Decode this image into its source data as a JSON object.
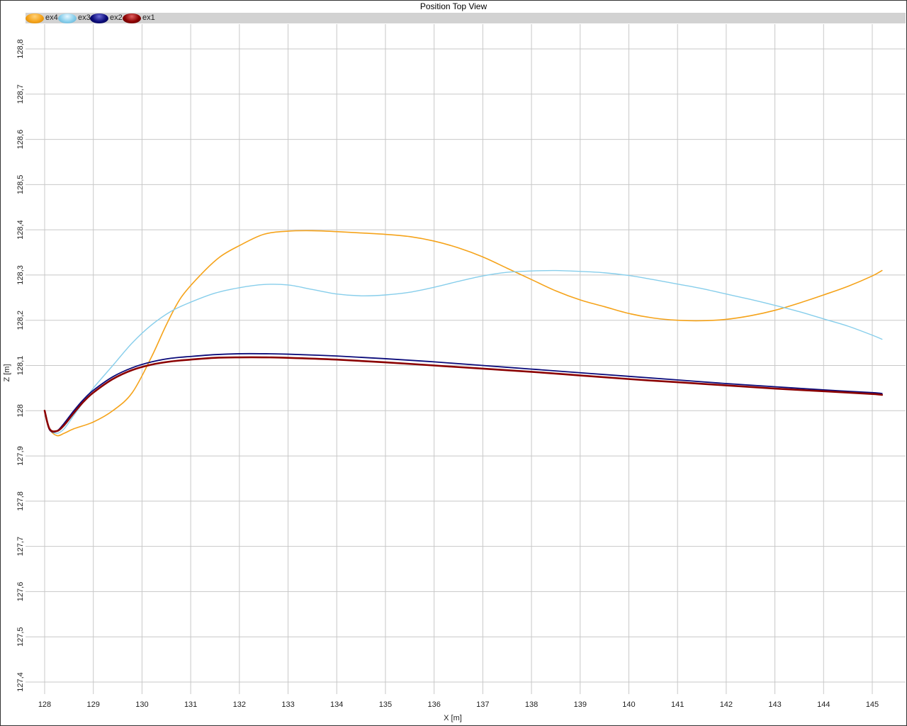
{
  "window": {
    "title": "Position Top View"
  },
  "chart_data": {
    "type": "line",
    "title": "Position Top View",
    "xlabel": "X [m]",
    "ylabel": "Z [m]",
    "xlim": [
      127.85,
      145.35
    ],
    "ylim": [
      127.38,
      128.85
    ],
    "grid": true,
    "legend_position": "top-left",
    "x_ticks": [
      128,
      129,
      130,
      131,
      132,
      133,
      134,
      135,
      136,
      137,
      138,
      139,
      140,
      141,
      142,
      143,
      144,
      145
    ],
    "x_tick_labels": [
      "128",
      "129",
      "130",
      "131",
      "132",
      "133",
      "134",
      "135",
      "136",
      "137",
      "138",
      "139",
      "140",
      "141",
      "142",
      "143",
      "144",
      "145"
    ],
    "y_ticks": [
      127.4,
      127.5,
      127.6,
      127.7,
      127.8,
      127.9,
      128.0,
      128.1,
      128.2,
      128.3,
      128.4,
      128.5,
      128.6,
      128.7,
      128.8
    ],
    "y_tick_labels": [
      "127,4",
      "127,5",
      "127,6",
      "127,7",
      "127,8",
      "127,9",
      "128",
      "128,1",
      "128,2",
      "128,3",
      "128,4",
      "128,5",
      "128,6",
      "128,7",
      "128,8"
    ],
    "series": [
      {
        "name": "ex4",
        "color": "#f5a31a",
        "width": 1.6,
        "x": [
          128.0,
          128.1,
          128.25,
          128.4,
          128.6,
          129.0,
          129.4,
          129.8,
          130.2,
          130.5,
          130.8,
          131.2,
          131.6,
          132.0,
          132.5,
          133.0,
          133.5,
          134.0,
          134.5,
          135.0,
          135.5,
          136.0,
          136.5,
          137.0,
          137.5,
          138.0,
          138.5,
          139.0,
          139.5,
          140.0,
          140.5,
          141.0,
          141.5,
          142.0,
          142.5,
          143.0,
          143.5,
          144.0,
          144.5,
          145.0,
          145.2
        ],
        "y": [
          128.0,
          127.96,
          127.945,
          127.95,
          127.96,
          127.975,
          128.0,
          128.04,
          128.12,
          128.19,
          128.25,
          128.3,
          128.34,
          128.365,
          128.39,
          128.397,
          128.398,
          128.396,
          128.393,
          128.39,
          128.385,
          128.375,
          128.36,
          128.34,
          128.315,
          128.29,
          128.265,
          128.245,
          128.23,
          128.215,
          128.205,
          128.2,
          128.199,
          128.202,
          128.21,
          128.222,
          128.238,
          128.256,
          128.275,
          128.298,
          128.31
        ]
      },
      {
        "name": "ex3",
        "color": "#87ceeb",
        "width": 1.4,
        "x": [
          128.0,
          128.1,
          128.25,
          128.4,
          128.6,
          128.8,
          129.0,
          129.4,
          129.8,
          130.2,
          130.6,
          131.0,
          131.5,
          132.0,
          132.5,
          133.0,
          133.5,
          134.0,
          134.5,
          135.0,
          135.5,
          136.0,
          136.5,
          137.0,
          137.5,
          138.0,
          138.5,
          139.0,
          139.5,
          140.0,
          140.5,
          141.0,
          141.5,
          142.0,
          142.5,
          143.0,
          143.5,
          144.0,
          144.5,
          145.0,
          145.2
        ],
        "y": [
          128.0,
          127.96,
          127.95,
          127.96,
          127.99,
          128.02,
          128.05,
          128.1,
          128.15,
          128.19,
          128.22,
          128.24,
          128.26,
          128.272,
          128.279,
          128.278,
          128.268,
          128.258,
          128.254,
          128.256,
          128.262,
          128.273,
          128.286,
          128.298,
          128.306,
          128.309,
          128.31,
          128.308,
          128.305,
          128.299,
          128.29,
          128.28,
          128.27,
          128.258,
          128.246,
          128.233,
          128.219,
          128.203,
          128.187,
          128.167,
          128.158
        ]
      },
      {
        "name": "ex2",
        "color": "#0b0b7a",
        "width": 1.8,
        "x": [
          128.0,
          128.1,
          128.25,
          128.4,
          128.6,
          128.8,
          129.0,
          129.4,
          129.8,
          130.2,
          130.6,
          131.0,
          131.5,
          132.0,
          132.5,
          133.0,
          134.0,
          135.0,
          136.0,
          137.0,
          138.0,
          139.0,
          140.0,
          141.0,
          142.0,
          143.0,
          144.0,
          145.0,
          145.2
        ],
        "y": [
          128.0,
          127.958,
          127.955,
          127.972,
          128.0,
          128.025,
          128.045,
          128.075,
          128.095,
          128.108,
          128.116,
          128.12,
          128.124,
          128.126,
          128.126,
          128.125,
          128.121,
          128.115,
          128.108,
          128.1,
          128.092,
          128.084,
          128.076,
          128.068,
          128.06,
          128.053,
          128.046,
          128.04,
          128.038
        ]
      },
      {
        "name": "ex1",
        "color": "#8b0000",
        "width": 2.6,
        "x": [
          128.0,
          128.1,
          128.25,
          128.4,
          128.6,
          128.8,
          129.0,
          129.4,
          129.8,
          130.2,
          130.6,
          131.0,
          131.5,
          132.0,
          132.5,
          133.0,
          134.0,
          135.0,
          136.0,
          137.0,
          138.0,
          139.0,
          140.0,
          141.0,
          142.0,
          143.0,
          144.0,
          145.0,
          145.2
        ],
        "y": [
          128.0,
          127.96,
          127.955,
          127.968,
          127.995,
          128.02,
          128.04,
          128.07,
          128.09,
          128.102,
          128.109,
          128.113,
          128.117,
          128.118,
          128.118,
          128.117,
          128.113,
          128.107,
          128.1,
          128.093,
          128.086,
          128.078,
          128.07,
          128.063,
          128.056,
          128.049,
          128.043,
          128.037,
          128.035
        ]
      }
    ]
  }
}
